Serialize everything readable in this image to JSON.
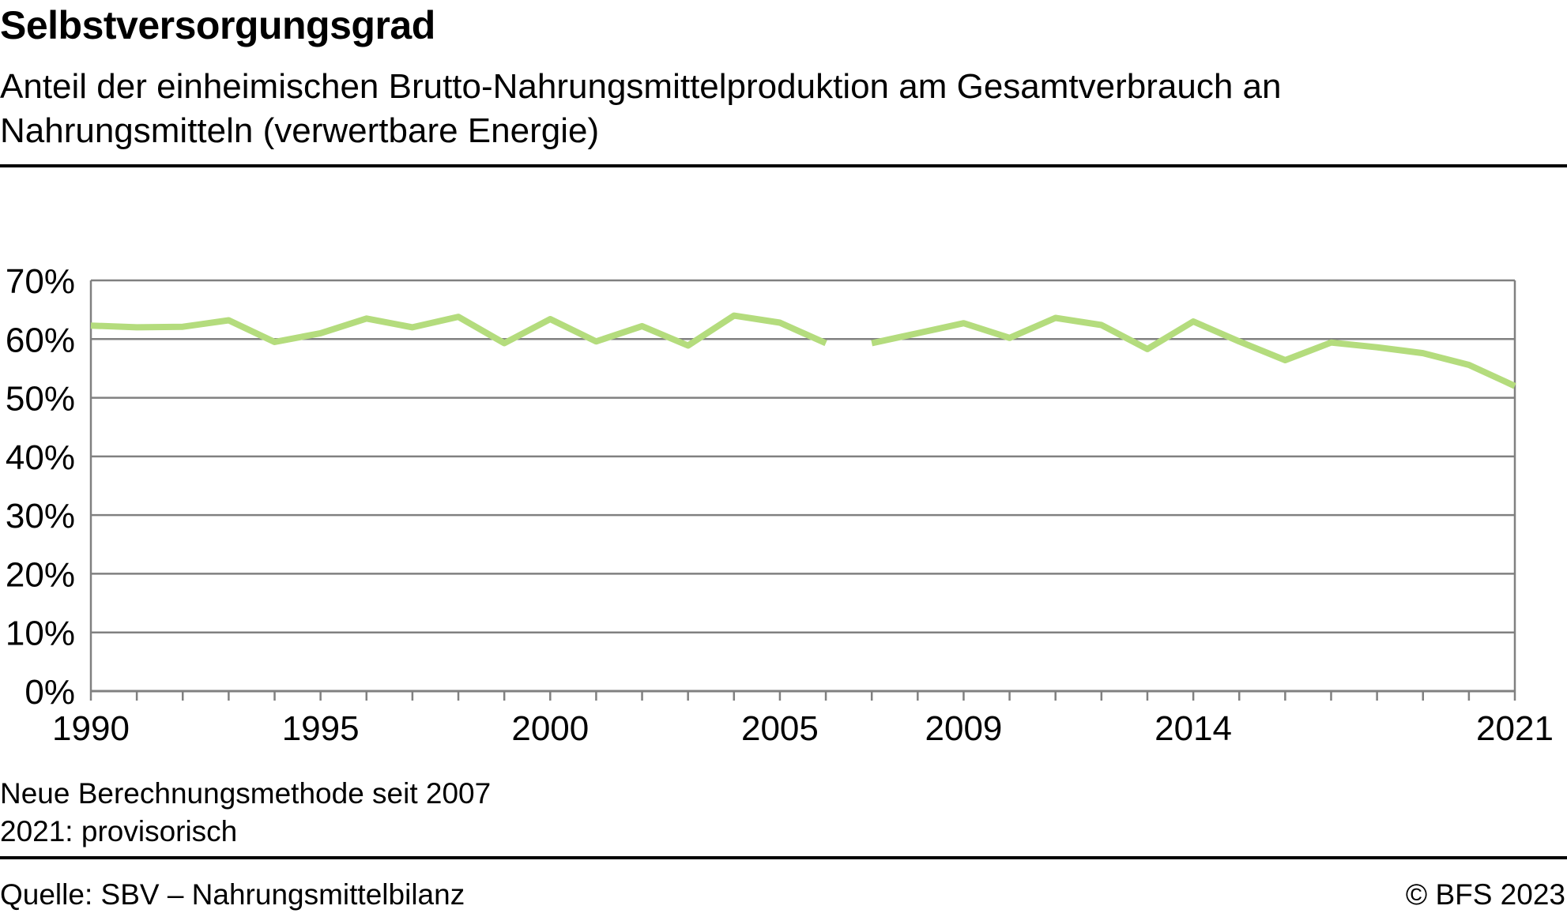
{
  "header": {
    "title": "Selbstversorgungsgrad",
    "subtitle": "Anteil der einheimischen Brutto-Nahrungsmittelproduktion am Gesamtverbrauch an Nahrungsmitteln (verwertbare Energie)"
  },
  "notes": {
    "line1": "Neue Berechnungsmethode seit 2007",
    "line2": "2021: provisorisch"
  },
  "footer": {
    "source": "Quelle: SBV – Nahrungsmittelbilanz",
    "copyright": "© BFS 2023"
  },
  "colors": {
    "series": "#b4dc7d",
    "grid": "#808080",
    "axis": "#808080",
    "text": "#000000"
  },
  "chart_data": {
    "type": "line",
    "title": "Selbstversorgungsgrad",
    "xlabel": "",
    "ylabel": "",
    "ylim": [
      0,
      70
    ],
    "xlim": [
      1990,
      2021
    ],
    "grid": true,
    "legend": "none",
    "y_ticks": [
      0,
      10,
      20,
      30,
      40,
      50,
      60,
      70
    ],
    "y_tick_labels": [
      "0%",
      "10%",
      "20%",
      "30%",
      "40%",
      "50%",
      "60%",
      "70%"
    ],
    "x_tick_labels": [
      "1990",
      "1995",
      "2000",
      "2005",
      "2009",
      "2014",
      "2021"
    ],
    "x_tick_values": [
      1990,
      1995,
      2000,
      2005,
      2009,
      2014,
      2021
    ],
    "series": [
      {
        "segments": [
          {
            "x": [
              1990,
              1991,
              1992,
              1993,
              1994,
              1995,
              1996,
              1997,
              1998,
              1999,
              2000,
              2001,
              2002,
              2003,
              2004,
              2005,
              2006
            ],
            "values": [
              62.3,
              62.0,
              62.1,
              63.2,
              59.5,
              61.0,
              63.5,
              62.0,
              63.8,
              59.3,
              63.4,
              59.6,
              62.2,
              58.9,
              64.0,
              62.8,
              59.3
            ]
          },
          {
            "x": [
              2007,
              2008,
              2009,
              2010,
              2011,
              2012,
              2013,
              2014,
              2015,
              2016,
              2017,
              2018,
              2019,
              2020,
              2021
            ],
            "values": [
              59.3,
              61.0,
              62.7,
              60.2,
              63.6,
              62.4,
              58.3,
              63.0,
              59.6,
              56.4,
              59.4,
              58.6,
              57.6,
              55.6,
              52.0
            ]
          }
        ]
      }
    ]
  }
}
